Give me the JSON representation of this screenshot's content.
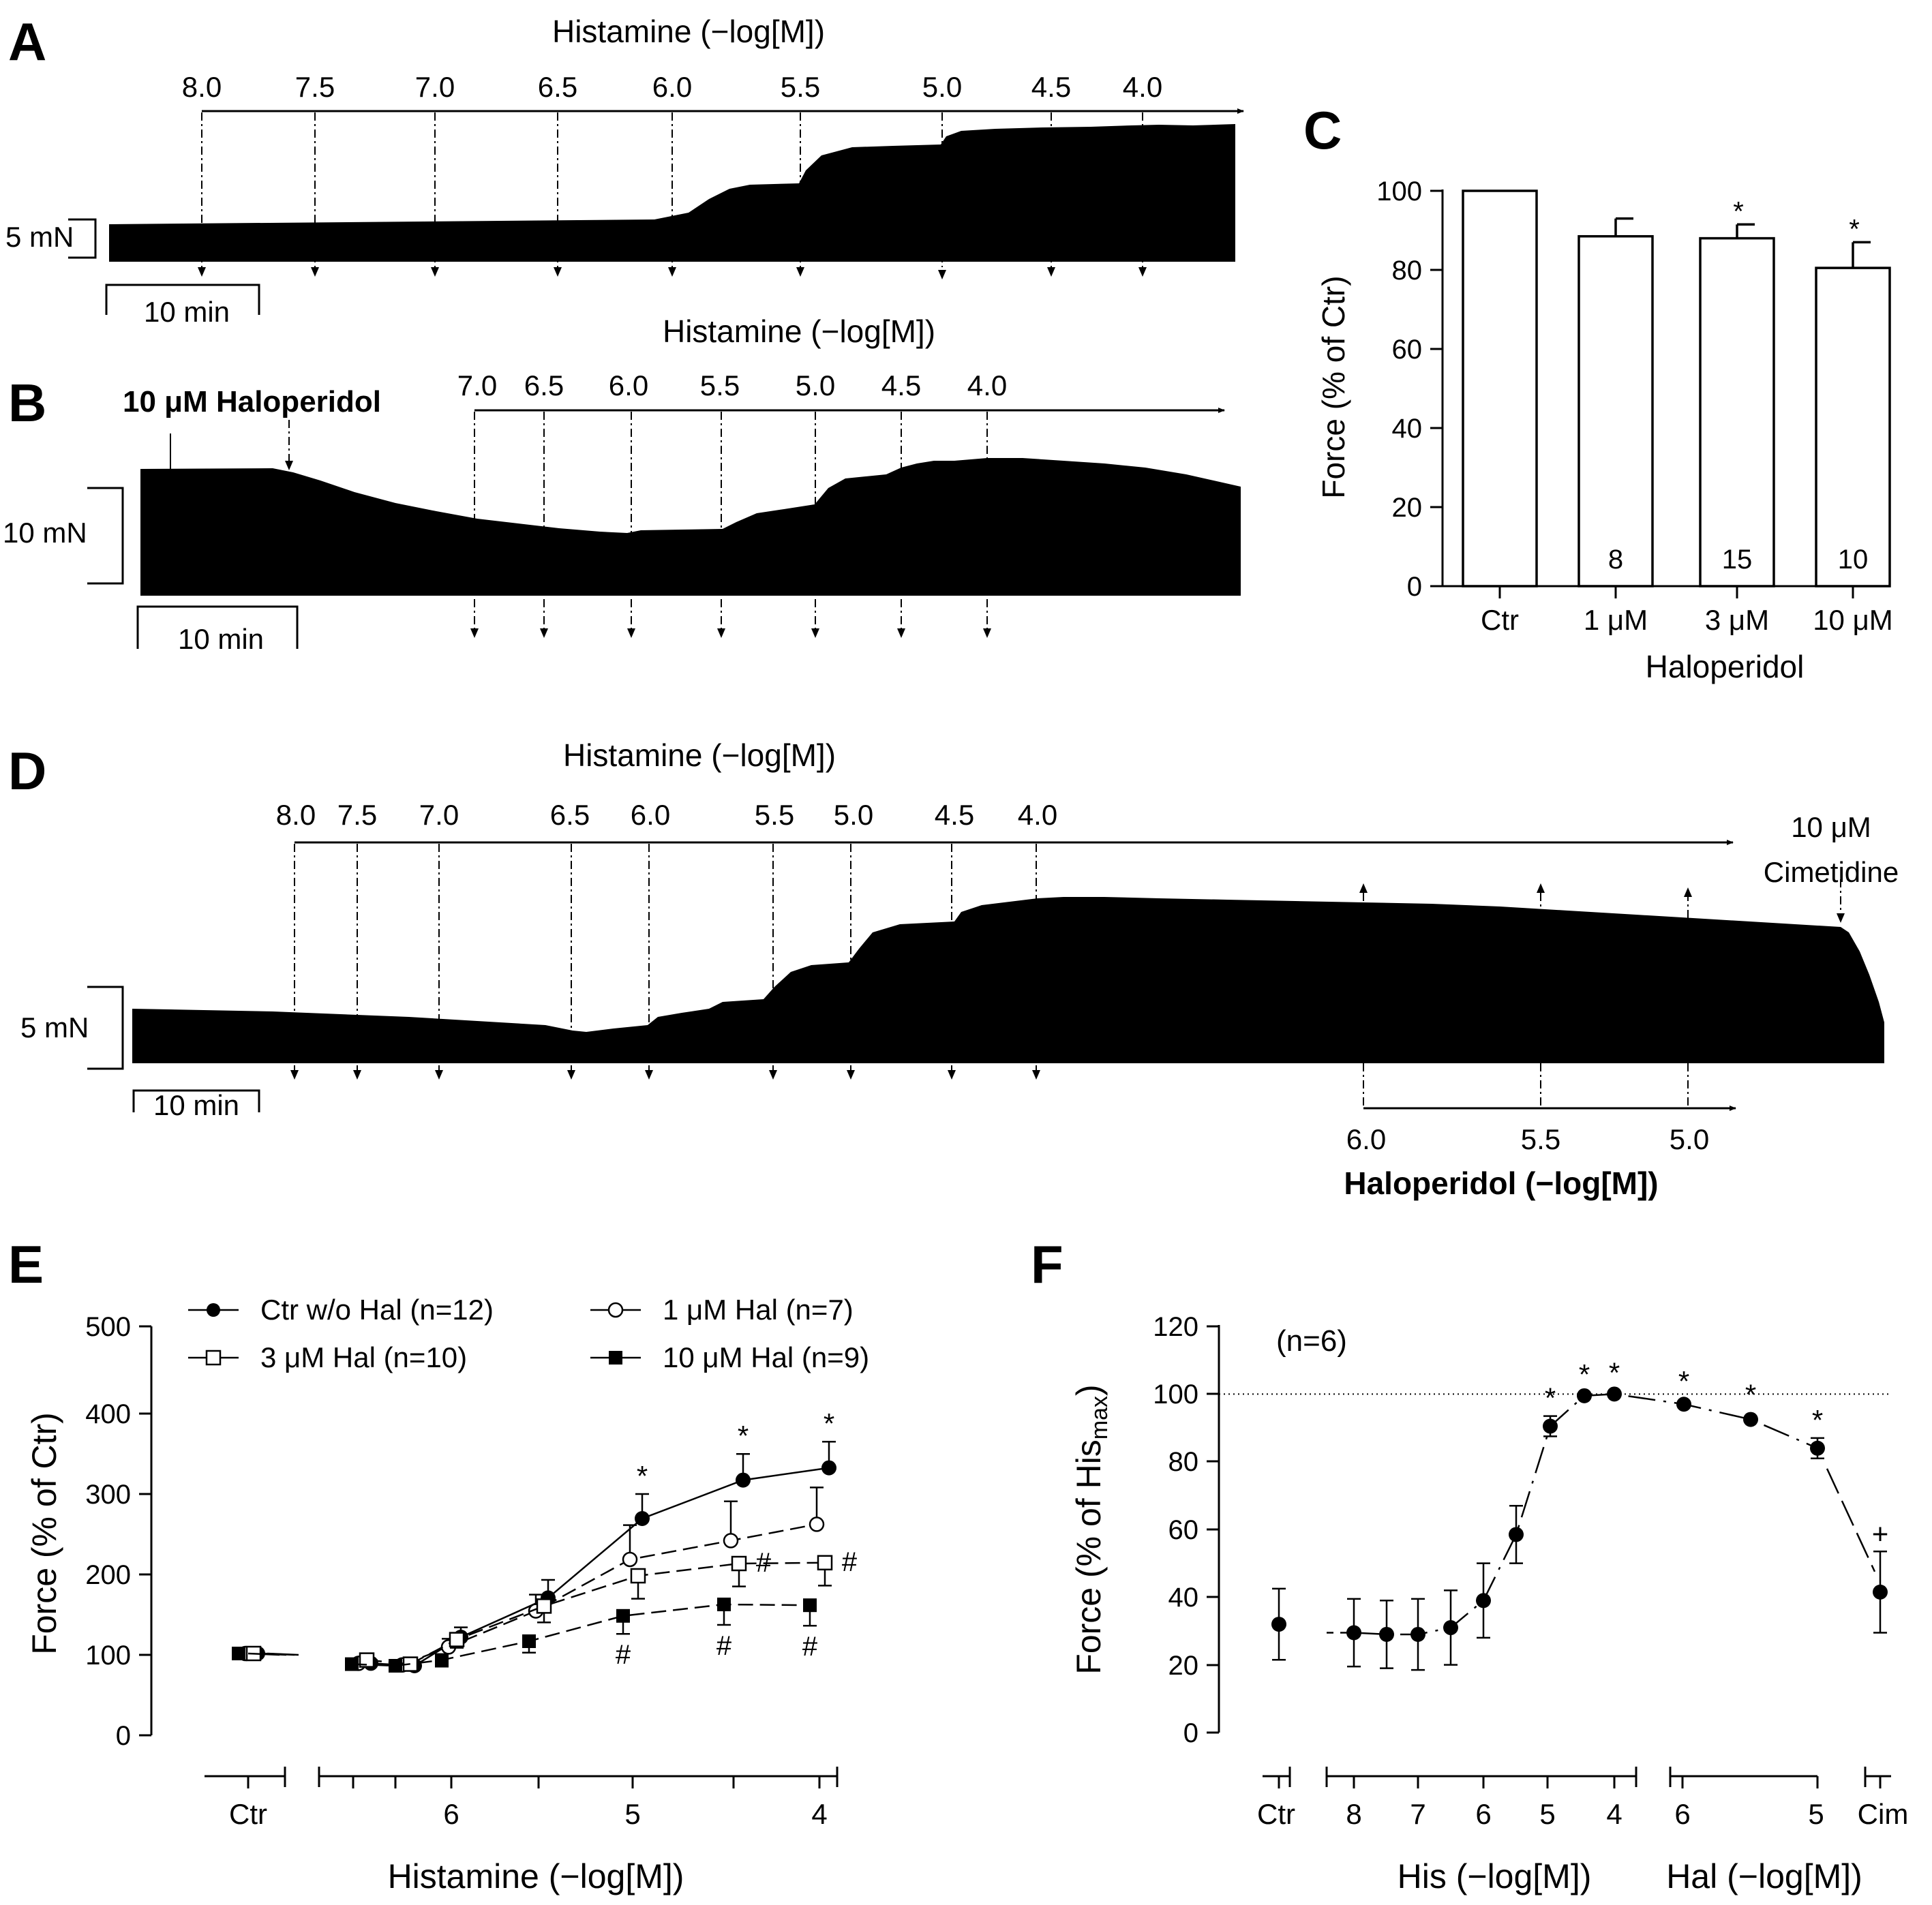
{
  "panels": {
    "A": {
      "letter": "A",
      "title": "Histamine (−log[M])",
      "conc_labels": [
        "8.0",
        "7.5",
        "7.0",
        "6.5",
        "6.0",
        "5.5",
        "5.0",
        "4.5",
        "4.0"
      ],
      "force_scale": "5 mN",
      "time_scale": "10 min"
    },
    "B": {
      "letter": "B",
      "title": "Histamine (−log[M])",
      "drug_label": "10 μM Haloperidol",
      "conc_labels": [
        "7.0",
        "6.5",
        "6.0",
        "5.5",
        "5.0",
        "4.5",
        "4.0"
      ],
      "force_scale": "10 mN",
      "time_scale": "10 min"
    },
    "D": {
      "letter": "D",
      "title": "Histamine (−log[M])",
      "conc_labels": [
        "8.0",
        "7.5",
        "7.0",
        "6.5",
        "6.0",
        "5.5",
        "5.0",
        "4.5",
        "4.0"
      ],
      "cim_label_1": "10 μM",
      "cim_label_2": "Cimetidine",
      "hal_conc_labels": [
        "6.0",
        "5.5",
        "5.0"
      ],
      "hal_title": "Haloperidol (−log[M])",
      "force_scale": "5 mN",
      "time_scale": "10 min"
    }
  },
  "chart_data": [
    {
      "panel": "C",
      "type": "bar",
      "letter": "C",
      "ylabel": "Force (% of Ctr)",
      "xlabel": "Haloperidol",
      "categories": [
        "Ctr",
        "1 μM",
        "3 μM",
        "10 μM"
      ],
      "values": [
        100,
        88.5,
        88,
        80.5
      ],
      "errors": [
        0,
        4.5,
        3.5,
        6.5
      ],
      "n_labels": [
        "",
        "8",
        "15",
        "10"
      ],
      "significance": [
        "",
        "",
        "*",
        "*"
      ],
      "ylim": [
        0,
        100
      ],
      "yticks": [
        "0",
        "20",
        "40",
        "60",
        "80",
        "100"
      ]
    },
    {
      "panel": "E",
      "type": "line",
      "letter": "E",
      "ylabel": "Force (% of Ctr)",
      "xlabel": "Histamine (−log[M])",
      "ylim": [
        0,
        500
      ],
      "yticks": [
        "0",
        "100",
        "200",
        "300",
        "400",
        "500"
      ],
      "x_ctr_label": "Ctr",
      "xticks": [
        "6",
        "5",
        "4"
      ],
      "legend": [
        "Ctr w/o Hal (n=12)",
        "1 μM Hal (n=7)",
        "3 μM Hal (n=10)",
        "10 μM Hal (n=9)"
      ],
      "x": [
        "Ctr",
        "7.0",
        "6.5",
        "6.0",
        "5.5",
        "5.0",
        "4.5",
        "4.0"
      ],
      "series": [
        {
          "name": "Ctr w/o Hal (n=12)",
          "marker": "filled-circle",
          "values": [
            100,
            88,
            85,
            120,
            168,
            265,
            312,
            327
          ],
          "errors": [
            3,
            4,
            5,
            12,
            22,
            30,
            32,
            32
          ],
          "marks": [
            "",
            "",
            "",
            "",
            "",
            "*",
            "*",
            "*"
          ]
        },
        {
          "name": "1 μM Hal (n=7)",
          "marker": "open-circle",
          "values": [
            100,
            88,
            86,
            108,
            152,
            215,
            238,
            258
          ],
          "errors": [
            3,
            4,
            5,
            10,
            20,
            42,
            48,
            45
          ],
          "marks": [
            "",
            "",
            "",
            "",
            "",
            "",
            "",
            ""
          ]
        },
        {
          "name": "3 μM Hal (n=10)",
          "marker": "open-square",
          "values": [
            100,
            92,
            87,
            117,
            158,
            195,
            210,
            211
          ],
          "errors": [
            3,
            4,
            5,
            10,
            20,
            28,
            28,
            28
          ],
          "marks": [
            "",
            "",
            "",
            "",
            "",
            "",
            "#",
            "#"
          ]
        },
        {
          "name": "10 μM Hal (n=9)",
          "marker": "filled-square",
          "values": [
            100,
            87,
            85,
            92,
            115,
            146,
            160,
            159
          ],
          "errors": [
            3,
            4,
            5,
            8,
            14,
            22,
            25,
            25
          ],
          "marks": [
            "",
            "",
            "",
            "",
            "",
            "#",
            "#",
            "#"
          ]
        }
      ]
    },
    {
      "panel": "F",
      "type": "scatter",
      "letter": "F",
      "ylabel_main": "Force (% of His",
      "ylabel_sub": "max",
      "ylabel_end": ")",
      "ylim": [
        0,
        120
      ],
      "yticks": [
        "0",
        "20",
        "40",
        "60",
        "80",
        "100",
        "120"
      ],
      "n_label": "(n=6)",
      "group_labels": {
        "ctr": "Ctr",
        "his": "His (−log[M])",
        "hal": "Hal (−log[M])",
        "cim": "Cim"
      },
      "his_ticks": [
        "8",
        "7",
        "6",
        "5",
        "4"
      ],
      "hal_ticks": [
        "6",
        "5"
      ],
      "reference_line": 100,
      "x": [
        "Ctr",
        "His 8.0",
        "His 7.5",
        "His 7.0",
        "His 6.5",
        "His 6.0",
        "His 5.5",
        "His 5.0",
        "His 4.5",
        "His 4.0",
        "Hal 6.0",
        "Hal 5.5",
        "Hal 5.0",
        "Cim"
      ],
      "values": [
        32,
        29.5,
        29,
        29,
        31,
        39,
        58.5,
        90.5,
        99.5,
        100,
        97,
        92.5,
        84,
        41.5
      ],
      "errors": [
        10.5,
        10,
        10,
        10.5,
        11,
        11,
        8.5,
        3,
        1,
        1,
        1.5,
        2,
        3,
        12
      ],
      "marks": [
        "",
        "",
        "",
        "",
        "",
        "",
        "",
        "*",
        "*",
        "*",
        "*",
        "*",
        "*",
        "+"
      ]
    }
  ]
}
